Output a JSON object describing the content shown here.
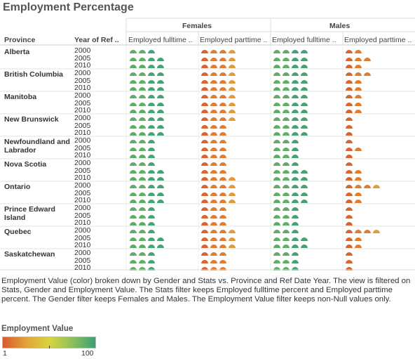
{
  "title": "Employment Percentage",
  "headers": {
    "province": "Province",
    "year": "Year of Ref ..",
    "gender_groups": [
      "Females",
      "Males"
    ],
    "stats": [
      "Employed fulltime ..",
      "Employed parttime ..",
      "Employed fulltime ..",
      "Employed parttime .."
    ]
  },
  "description": "Employment Value (color) broken down by Gender and Stats vs. Province and Ref Date Year. The view is filtered on Stats, Gender and Employment Value. The Stats filter keeps Employed fulltime percent and Employed parttime percent. The Gender filter keeps Females and Males. The Employment Value filter keeps non-Null values only.",
  "legend": {
    "title": "Employment Value",
    "min_label": "1",
    "max_label": "100",
    "colors": [
      "#d8592e",
      "#e3a23b",
      "#d9d53d",
      "#8ec05c",
      "#3c9e76"
    ]
  },
  "chart_data": {
    "type": "table",
    "mark": "half-circle shape count",
    "columns": [
      {
        "gender": "Females",
        "stat": "Employed fulltime percent"
      },
      {
        "gender": "Females",
        "stat": "Employed parttime percent"
      },
      {
        "gender": "Males",
        "stat": "Employed fulltime percent"
      },
      {
        "gender": "Males",
        "stat": "Employed parttime percent"
      }
    ],
    "years": [
      "2000",
      "2005",
      "2010"
    ],
    "rows": [
      {
        "province": "Alberta",
        "counts": [
          [
            3,
            4,
            4,
            2
          ],
          [
            4,
            4,
            4,
            3
          ],
          [
            4,
            4,
            4,
            2
          ]
        ]
      },
      {
        "province": "British Columbia",
        "counts": [
          [
            4,
            4,
            4,
            3
          ],
          [
            4,
            4,
            4,
            2
          ],
          [
            4,
            4,
            4,
            2
          ]
        ]
      },
      {
        "province": "Manitoba",
        "counts": [
          [
            4,
            4,
            4,
            2
          ],
          [
            4,
            4,
            4,
            2
          ],
          [
            4,
            4,
            4,
            2
          ]
        ]
      },
      {
        "province": "New Brunswick",
        "counts": [
          [
            4,
            4,
            4,
            1
          ],
          [
            4,
            3,
            4,
            1
          ],
          [
            4,
            3,
            4,
            1
          ]
        ]
      },
      {
        "province": "Newfoundland and Labrador",
        "counts": [
          [
            3,
            3,
            3,
            1
          ],
          [
            3,
            3,
            3,
            2
          ],
          [
            3,
            3,
            3,
            1
          ]
        ]
      },
      {
        "province": "Nova Scotia",
        "counts": [
          [
            3,
            3,
            3,
            1
          ],
          [
            4,
            3,
            4,
            2
          ],
          [
            4,
            4,
            4,
            2
          ]
        ]
      },
      {
        "province": "Ontario",
        "counts": [
          [
            4,
            4,
            4,
            4
          ],
          [
            4,
            4,
            4,
            2
          ],
          [
            4,
            4,
            4,
            2
          ]
        ]
      },
      {
        "province": "Prince Edward Island",
        "counts": [
          [
            3,
            3,
            3,
            1
          ],
          [
            3,
            3,
            3,
            1
          ],
          [
            3,
            3,
            3,
            1
          ]
        ]
      },
      {
        "province": "Quebec",
        "counts": [
          [
            3,
            4,
            3,
            4
          ],
          [
            4,
            4,
            4,
            2
          ],
          [
            4,
            4,
            4,
            2
          ]
        ]
      },
      {
        "province": "Saskatchewan",
        "counts": [
          [
            3,
            3,
            3,
            1
          ],
          [
            3,
            3,
            3,
            1
          ],
          [
            3,
            3,
            3,
            1
          ]
        ]
      }
    ]
  }
}
